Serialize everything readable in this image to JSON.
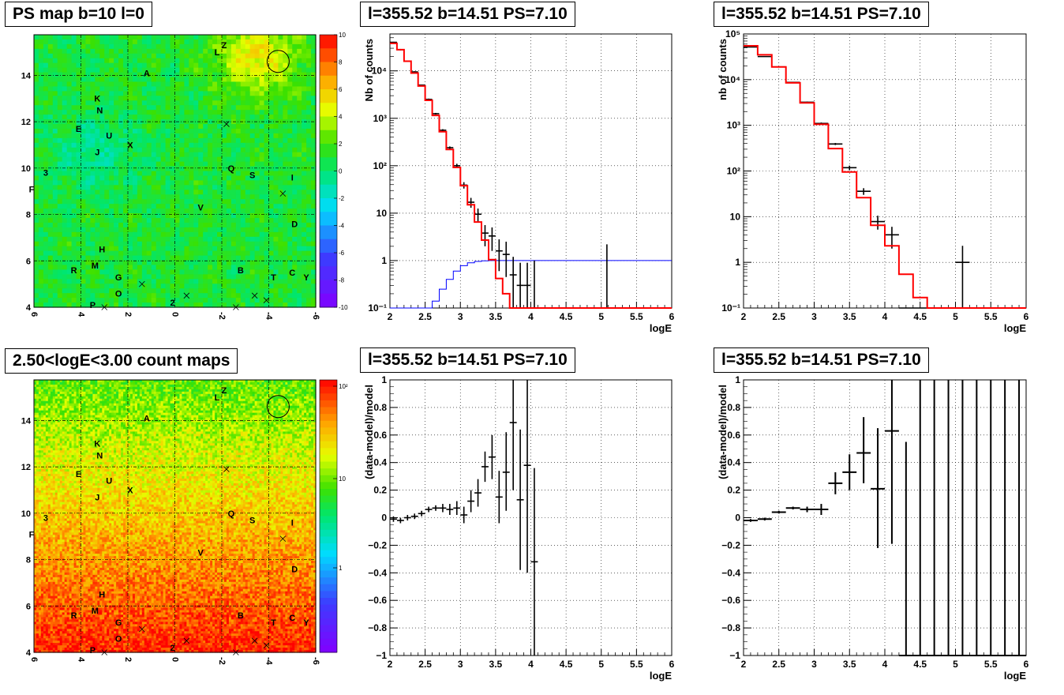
{
  "maps": {
    "title_top": "PS map b=10 l=0",
    "title_bottom": "2.50<logE<3.00 count maps",
    "x_ticks": [
      "6",
      "4",
      "2",
      "0",
      "-2",
      "-4",
      "-6"
    ],
    "y_ticks": [
      "4",
      "6",
      "8",
      "10",
      "12",
      "14"
    ],
    "sources": [
      {
        "label": "Z",
        "l": -2.1,
        "b": 15.3
      },
      {
        "label": "L",
        "l": -1.8,
        "b": 15.0
      },
      {
        "label": "A",
        "l": 1.2,
        "b": 14.1
      },
      {
        "label": "K",
        "l": 3.3,
        "b": 13.0
      },
      {
        "label": "N",
        "l": 3.2,
        "b": 12.5
      },
      {
        "label": "E",
        "l": 4.1,
        "b": 11.7
      },
      {
        "label": "U",
        "l": 2.8,
        "b": 11.4
      },
      {
        "label": "X",
        "l": 1.9,
        "b": 11.0
      },
      {
        "label": "J",
        "l": 3.3,
        "b": 10.7
      },
      {
        "label": "3",
        "l": 5.5,
        "b": 9.8
      },
      {
        "label": "F",
        "l": 6.1,
        "b": 9.1
      },
      {
        "label": "Q",
        "l": -2.4,
        "b": 10.0
      },
      {
        "label": "S",
        "l": -3.3,
        "b": 9.7
      },
      {
        "label": "I",
        "l": -5.0,
        "b": 9.6
      },
      {
        "label": "V",
        "l": -1.1,
        "b": 8.3
      },
      {
        "label": "D",
        "l": -5.1,
        "b": 7.6
      },
      {
        "label": "H",
        "l": 3.1,
        "b": 6.5
      },
      {
        "label": "M",
        "l": 3.4,
        "b": 5.8
      },
      {
        "label": "R",
        "l": 4.3,
        "b": 5.6
      },
      {
        "label": "G",
        "l": 2.4,
        "b": 5.3
      },
      {
        "label": "B",
        "l": -2.8,
        "b": 5.6
      },
      {
        "label": "T",
        "l": -4.2,
        "b": 5.3
      },
      {
        "label": "C",
        "l": -5.0,
        "b": 5.5
      },
      {
        "label": "Y",
        "l": -5.6,
        "b": 5.3
      },
      {
        "label": "O",
        "l": 2.4,
        "b": 4.6
      },
      {
        "label": "P",
        "l": 3.5,
        "b": 4.1
      },
      {
        "label": "2",
        "l": 0.1,
        "b": 4.2
      }
    ],
    "crosses": [
      {
        "l": -2.2,
        "b": 11.9
      },
      {
        "l": -4.6,
        "b": 8.9
      },
      {
        "l": 1.4,
        "b": 5.0
      },
      {
        "l": -0.5,
        "b": 4.5
      },
      {
        "l": -3.4,
        "b": 4.5
      },
      {
        "l": -3.9,
        "b": 4.3
      },
      {
        "l": 3.0,
        "b": 4.0
      },
      {
        "l": -2.6,
        "b": 4.0
      }
    ],
    "circle": {
      "l": -4.4,
      "b": 14.6
    },
    "colorbar_top": [
      "10",
      "8",
      "6",
      "4",
      "2",
      "0",
      "-2",
      "-4",
      "-6",
      "-8",
      "-10"
    ],
    "colorbar_bottom": [
      "10²",
      "10",
      "1"
    ]
  },
  "spec_title": "l=355.52 b=14.51 PS=7.10",
  "x_ticks": [
    "2",
    "2.5",
    "3",
    "3.5",
    "4",
    "4.5",
    "5",
    "5.5",
    "6"
  ],
  "xlabel": "logE",
  "ylabel_top_left": "Nb of counts",
  "ylabel_top_right": "nb of counts",
  "ylabel_res": "(data-model)/model",
  "log_ticks_left": [
    "10⁻¹",
    "1",
    "10",
    "10²",
    "10³",
    "10⁴"
  ],
  "log_ticks_right": [
    "10⁻¹",
    "1",
    "10",
    "10²",
    "10³",
    "10⁴",
    "10⁵"
  ],
  "res_ticks": [
    "−1",
    "−0.8",
    "−0.6",
    "−0.4",
    "−0.2",
    "0",
    "0.2",
    "0.4",
    "0.6",
    "0.8",
    "1"
  ],
  "colors": {
    "model": "#ff0000",
    "template": "#0000ff",
    "data": "#000000"
  },
  "chart_data": [
    {
      "type": "line",
      "title": "l=355.52 b=14.51 PS=7.10",
      "xlabel": "logE",
      "ylabel": "Nb of counts",
      "xlim": [
        2,
        6
      ],
      "ylim": [
        0.1,
        60000
      ],
      "yscale": "log",
      "series": [
        {
          "name": "model",
          "step": 0.1,
          "values": [
            38000,
            28000,
            16000,
            9000,
            4800,
            2400,
            1150,
            520,
            220,
            92,
            38,
            15,
            6.5,
            2.7,
            1.05,
            0.42,
            0.2,
            0.1,
            0.1,
            0.1,
            0.1,
            0.1,
            0.1,
            0.1,
            0.1,
            0.1,
            0.1,
            0.1,
            0.1,
            0.1,
            0.1,
            0.1,
            0.1,
            0.1,
            0.1,
            0.1,
            0.1,
            0.1,
            0.1,
            0.1
          ]
        },
        {
          "name": "template",
          "step": 0.1,
          "values": [
            0.1,
            0.1,
            0.1,
            0.1,
            0.1,
            0.1,
            0.14,
            0.25,
            0.4,
            0.6,
            0.78,
            0.9,
            0.96,
            0.99,
            1,
            1,
            1,
            1,
            1,
            1,
            1,
            1,
            1,
            1,
            1,
            1,
            1,
            1,
            1,
            1,
            1,
            1,
            1,
            1,
            1,
            1,
            1,
            1,
            1,
            1
          ]
        },
        {
          "name": "data",
          "points": [
            {
              "x": 2.05,
              "y": 40000,
              "xerr": 0.05,
              "lo": 39000,
              "hi": 41000
            },
            {
              "x": 2.15,
              "y": 28000,
              "xerr": 0.05,
              "lo": 27000,
              "hi": 29000
            },
            {
              "x": 2.25,
              "y": 16000,
              "xerr": 0.05,
              "lo": 15500,
              "hi": 16500
            },
            {
              "x": 2.35,
              "y": 9500,
              "xerr": 0.05,
              "lo": 9200,
              "hi": 9800
            },
            {
              "x": 2.45,
              "y": 5000,
              "xerr": 0.05,
              "lo": 4850,
              "hi": 5150
            },
            {
              "x": 2.55,
              "y": 2500,
              "xerr": 0.05,
              "lo": 2400,
              "hi": 2600
            },
            {
              "x": 2.65,
              "y": 1250,
              "xerr": 0.05,
              "lo": 1200,
              "hi": 1300
            },
            {
              "x": 2.75,
              "y": 560,
              "xerr": 0.05,
              "lo": 530,
              "hi": 590
            },
            {
              "x": 2.85,
              "y": 240,
              "xerr": 0.05,
              "lo": 225,
              "hi": 255
            },
            {
              "x": 2.95,
              "y": 100,
              "xerr": 0.05,
              "lo": 90,
              "hi": 110
            },
            {
              "x": 3.05,
              "y": 39,
              "xerr": 0.05,
              "lo": 33,
              "hi": 45
            },
            {
              "x": 3.15,
              "y": 17,
              "xerr": 0.05,
              "lo": 13,
              "hi": 21
            },
            {
              "x": 3.25,
              "y": 9.5,
              "xerr": 0.05,
              "lo": 6.5,
              "hi": 12.5
            },
            {
              "x": 3.35,
              "y": 3.8,
              "xerr": 0.05,
              "lo": 2,
              "hi": 5.6
            },
            {
              "x": 3.45,
              "y": 3.3,
              "xerr": 0.05,
              "lo": 1.6,
              "hi": 5
            },
            {
              "x": 3.55,
              "y": 1.6,
              "xerr": 0.05,
              "lo": 0.6,
              "hi": 2.8
            },
            {
              "x": 3.65,
              "y": 1.35,
              "xerr": 0.05,
              "lo": 0.45,
              "hi": 2.5
            },
            {
              "x": 3.75,
              "y": 0.5,
              "xerr": 0.05,
              "lo": 0.1,
              "hi": 1.2
            },
            {
              "x": 3.85,
              "y": 0.3,
              "xerr": 0.05,
              "lo": 0.1,
              "hi": 0.9
            },
            {
              "x": 3.95,
              "y": 0.3,
              "xerr": 0.05,
              "lo": 0.1,
              "hi": 0.9
            },
            {
              "x": 4.05,
              "y": 0.1,
              "xerr": 0.05,
              "lo": 0.1,
              "hi": 0.1
            },
            {
              "x": 4.15,
              "y": 0.1,
              "xerr": 0.05,
              "lo": 0.1,
              "hi": 0.1
            },
            {
              "x": 4.25,
              "y": 0.1,
              "xerr": 0.05,
              "lo": 0.1,
              "hi": 0.1
            },
            {
              "x": 4.35,
              "y": 0.1,
              "xerr": 0.05,
              "lo": 0.1,
              "hi": 0.1
            },
            {
              "x": 4.45,
              "y": 0.1,
              "xerr": 0.05,
              "lo": 0.1,
              "hi": 0.1
            }
          ]
        }
      ]
    },
    {
      "type": "line",
      "title": "l=355.52 b=14.51 PS=7.10",
      "xlabel": "logE",
      "ylabel": "nb of counts",
      "xlim": [
        2,
        6
      ],
      "ylim": [
        0.1,
        100000
      ],
      "yscale": "log",
      "series": [
        {
          "name": "model",
          "step": 0.2,
          "values": [
            55000,
            35000,
            19000,
            8500,
            3100,
            1050,
            310,
            95,
            26,
            6.5,
            2.3,
            0.55,
            0.17,
            0.1,
            0.1,
            0.1,
            0.1,
            0.1,
            0.1,
            0.1
          ]
        },
        {
          "name": "data",
          "points": [
            {
              "x": 2.1,
              "y": 52000,
              "xerr": 0.1,
              "lo": 51000,
              "hi": 53000
            },
            {
              "x": 2.3,
              "y": 32000,
              "xerr": 0.1,
              "lo": 31500,
              "hi": 32500
            },
            {
              "x": 2.5,
              "y": 19000,
              "xerr": 0.1,
              "lo": 18700,
              "hi": 19300
            },
            {
              "x": 2.7,
              "y": 8700,
              "xerr": 0.1,
              "lo": 8500,
              "hi": 8900
            },
            {
              "x": 2.9,
              "y": 3200,
              "xerr": 0.1,
              "lo": 3100,
              "hi": 3300
            },
            {
              "x": 3.1,
              "y": 1100,
              "xerr": 0.1,
              "lo": 1050,
              "hi": 1150
            },
            {
              "x": 3.3,
              "y": 390,
              "xerr": 0.1,
              "lo": 370,
              "hi": 410
            },
            {
              "x": 3.5,
              "y": 118,
              "xerr": 0.1,
              "lo": 105,
              "hi": 131
            },
            {
              "x": 3.7,
              "y": 36,
              "xerr": 0.1,
              "lo": 30,
              "hi": 42
            },
            {
              "x": 3.9,
              "y": 7.8,
              "xerr": 0.1,
              "lo": 5.2,
              "hi": 10.5
            },
            {
              "x": 4.1,
              "y": 4,
              "xerr": 0.1,
              "lo": 2,
              "hi": 6
            },
            {
              "x": 4.3,
              "y": 0.1,
              "xerr": 0.1,
              "lo": 0.1,
              "hi": 0.1
            },
            {
              "x": 4.5,
              "y": 0.1,
              "xerr": 0.1,
              "lo": 0.1,
              "hi": 0.1
            },
            {
              "x": 4.7,
              "y": 0.1,
              "xerr": 0.1,
              "lo": 0.1,
              "hi": 0.1
            },
            {
              "x": 4.9,
              "y": 0.1,
              "xerr": 0.1,
              "lo": 0.1,
              "hi": 0.1
            },
            {
              "x": 5.1,
              "y": 1,
              "xerr": 0.1,
              "lo": 0.1,
              "hi": 2.3
            }
          ]
        }
      ]
    },
    {
      "type": "scatter",
      "title": "l=355.52 b=14.51 PS=7.10",
      "xlabel": "logE",
      "ylabel": "(data-model)/model",
      "xlim": [
        2,
        6
      ],
      "ylim": [
        -1,
        1
      ],
      "series": [
        {
          "name": "residuals",
          "points": [
            {
              "x": 2.05,
              "y": -0.01,
              "xerr": 0.05,
              "lo": -0.03,
              "hi": 0.01
            },
            {
              "x": 2.15,
              "y": -0.02,
              "xerr": 0.05,
              "lo": -0.04,
              "hi": 0
            },
            {
              "x": 2.25,
              "y": 0,
              "xerr": 0.05,
              "lo": -0.02,
              "hi": 0.02
            },
            {
              "x": 2.35,
              "y": 0.01,
              "xerr": 0.05,
              "lo": -0.01,
              "hi": 0.03
            },
            {
              "x": 2.45,
              "y": 0.03,
              "xerr": 0.05,
              "lo": 0.01,
              "hi": 0.05
            },
            {
              "x": 2.55,
              "y": 0.06,
              "xerr": 0.05,
              "lo": 0.04,
              "hi": 0.08
            },
            {
              "x": 2.65,
              "y": 0.07,
              "xerr": 0.05,
              "lo": 0.05,
              "hi": 0.09
            },
            {
              "x": 2.75,
              "y": 0.07,
              "xerr": 0.05,
              "lo": 0.04,
              "hi": 0.1
            },
            {
              "x": 2.85,
              "y": 0.06,
              "xerr": 0.05,
              "lo": 0.02,
              "hi": 0.1
            },
            {
              "x": 2.95,
              "y": 0.07,
              "xerr": 0.05,
              "lo": 0.02,
              "hi": 0.12
            },
            {
              "x": 3.05,
              "y": 0.02,
              "xerr": 0.05,
              "lo": -0.04,
              "hi": 0.08
            },
            {
              "x": 3.15,
              "y": 0.12,
              "xerr": 0.05,
              "lo": 0.04,
              "hi": 0.2
            },
            {
              "x": 3.25,
              "y": 0.18,
              "xerr": 0.05,
              "lo": 0.08,
              "hi": 0.28
            },
            {
              "x": 3.35,
              "y": 0.37,
              "xerr": 0.05,
              "lo": 0.26,
              "hi": 0.48
            },
            {
              "x": 3.45,
              "y": 0.44,
              "xerr": 0.05,
              "lo": 0.28,
              "hi": 0.6
            },
            {
              "x": 3.55,
              "y": 0.15,
              "xerr": 0.05,
              "lo": -0.04,
              "hi": 0.34
            },
            {
              "x": 3.65,
              "y": 0.33,
              "xerr": 0.05,
              "lo": 0.05,
              "hi": 0.62
            },
            {
              "x": 3.75,
              "y": 0.69,
              "xerr": 0.05,
              "lo": 0.2,
              "hi": 1
            },
            {
              "x": 3.85,
              "y": 0.13,
              "xerr": 0.05,
              "lo": -0.38,
              "hi": 0.64
            },
            {
              "x": 3.95,
              "y": 0.38,
              "xerr": 0.05,
              "lo": -0.4,
              "hi": 1
            },
            {
              "x": 4.05,
              "y": -0.32,
              "xerr": 0.05,
              "lo": -1,
              "hi": 0.36
            }
          ]
        }
      ]
    },
    {
      "type": "scatter",
      "title": "l=355.52 b=14.51 PS=7.10",
      "xlabel": "logE",
      "ylabel": "(data-model)/model",
      "xlim": [
        2,
        6
      ],
      "ylim": [
        -1,
        1
      ],
      "series": [
        {
          "name": "residuals",
          "points": [
            {
              "x": 2.1,
              "y": -0.02,
              "xerr": 0.1,
              "lo": -0.03,
              "hi": -0.01
            },
            {
              "x": 2.3,
              "y": -0.01,
              "xerr": 0.1,
              "lo": -0.02,
              "hi": 0
            },
            {
              "x": 2.5,
              "y": 0.04,
              "xerr": 0.1,
              "lo": 0.03,
              "hi": 0.05
            },
            {
              "x": 2.7,
              "y": 0.07,
              "xerr": 0.1,
              "lo": 0.06,
              "hi": 0.08
            },
            {
              "x": 2.9,
              "y": 0.06,
              "xerr": 0.1,
              "lo": 0.04,
              "hi": 0.08
            },
            {
              "x": 3.1,
              "y": 0.06,
              "xerr": 0.1,
              "lo": 0.02,
              "hi": 0.1
            },
            {
              "x": 3.3,
              "y": 0.25,
              "xerr": 0.1,
              "lo": 0.17,
              "hi": 0.33
            },
            {
              "x": 3.5,
              "y": 0.33,
              "xerr": 0.1,
              "lo": 0.2,
              "hi": 0.46
            },
            {
              "x": 3.7,
              "y": 0.47,
              "xerr": 0.1,
              "lo": 0.25,
              "hi": 0.73
            },
            {
              "x": 3.9,
              "y": 0.21,
              "xerr": 0.1,
              "lo": -0.22,
              "hi": 0.65
            },
            {
              "x": 4.1,
              "y": 0.63,
              "xerr": 0.1,
              "lo": -0.19,
              "hi": 1
            },
            {
              "x": 4.3,
              "y": -1,
              "xerr": 0.1,
              "lo": -1,
              "hi": 0.55
            },
            {
              "x": 4.5,
              "y": -1,
              "xerr": 0.1,
              "lo": -1,
              "hi": 1
            },
            {
              "x": 4.7,
              "y": -1,
              "xerr": 0.1,
              "lo": -1,
              "hi": 1
            },
            {
              "x": 4.9,
              "y": -1,
              "xerr": 0.1,
              "lo": -1,
              "hi": 1
            },
            {
              "x": 5.1,
              "y": -1,
              "xerr": 0.1,
              "lo": -1,
              "hi": 1
            },
            {
              "x": 5.3,
              "y": -1,
              "xerr": 0.1,
              "lo": -1,
              "hi": 1
            },
            {
              "x": 5.5,
              "y": -1,
              "xerr": 0.1,
              "lo": -1,
              "hi": 1
            },
            {
              "x": 5.7,
              "y": -1,
              "xerr": 0.1,
              "lo": -1,
              "hi": 1
            },
            {
              "x": 5.9,
              "y": -1,
              "xerr": 0.1,
              "lo": -1,
              "hi": 1
            }
          ]
        }
      ]
    }
  ]
}
